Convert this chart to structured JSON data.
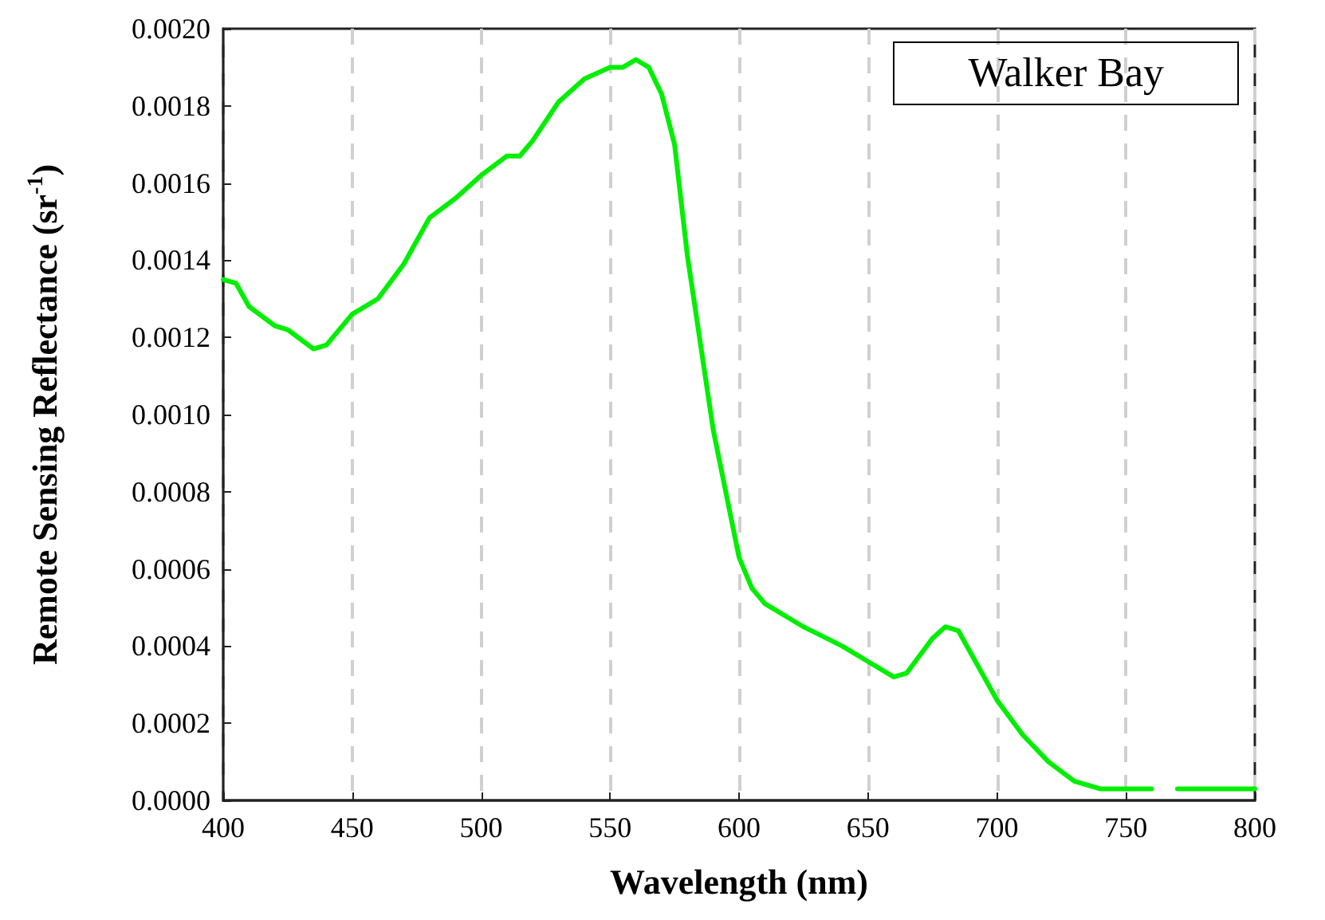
{
  "chart_data": {
    "type": "line",
    "xlabel": "Wavelength (nm)",
    "ylabel": "Remote Sensing Reflectance (sr$^{-1}$)",
    "annotations": [
      "Walker Bay"
    ],
    "x": [
      400,
      405,
      410,
      420,
      425,
      435,
      440,
      450,
      460,
      470,
      480,
      490,
      500,
      510,
      515,
      520,
      530,
      540,
      550,
      555,
      560,
      565,
      570,
      575,
      580,
      590,
      600,
      605,
      610,
      625,
      640,
      650,
      660,
      665,
      675,
      680,
      685,
      690,
      700,
      710,
      720,
      730,
      740,
      760,
      765,
      770,
      790,
      800
    ],
    "series": [
      {
        "color": "#00ee00",
        "values": [
          0.00135,
          0.00134,
          0.00128,
          0.00123,
          0.00122,
          0.00117,
          0.00118,
          0.00126,
          0.0013,
          0.00139,
          0.00151,
          0.00156,
          0.00162,
          0.00167,
          0.00167,
          0.00171,
          0.00181,
          0.00187,
          0.0019,
          0.0019,
          0.00192,
          0.0019,
          0.00183,
          0.0017,
          0.00141,
          0.00096,
          0.00063,
          0.00055,
          0.00051,
          0.00045,
          0.0004,
          0.00036,
          0.00032,
          0.00033,
          0.00042,
          0.00045,
          0.00044,
          0.00038,
          0.00026,
          0.00017,
          0.0001,
          5e-05,
          3e-05,
          3e-05,
          null,
          3e-05,
          3e-05,
          3e-05
        ]
      }
    ],
    "xlim": [
      400,
      800
    ],
    "xticks": [
      400,
      450,
      500,
      550,
      600,
      650,
      700,
      750,
      800
    ],
    "ylim": [
      0,
      0.002
    ],
    "yticks": [
      {
        "value": 0,
        "label": "0.0000"
      },
      {
        "value": 0.0002,
        "label": "0.0002"
      },
      {
        "value": 0.0004,
        "label": "0.0004"
      },
      {
        "value": 0.0006,
        "label": "0.0006"
      },
      {
        "value": 0.0008,
        "label": "0.0008"
      },
      {
        "value": 0.001,
        "label": "0.0010"
      },
      {
        "value": 0.0012,
        "label": "0.0012"
      },
      {
        "value": 0.0014,
        "label": "0.0014"
      },
      {
        "value": 0.0016,
        "label": "0.0016"
      },
      {
        "value": 0.0018,
        "label": "0.0018"
      },
      {
        "value": 0.002,
        "label": "0.0020"
      }
    ],
    "grid": "x",
    "marker": "none",
    "line_style": "solid"
  }
}
